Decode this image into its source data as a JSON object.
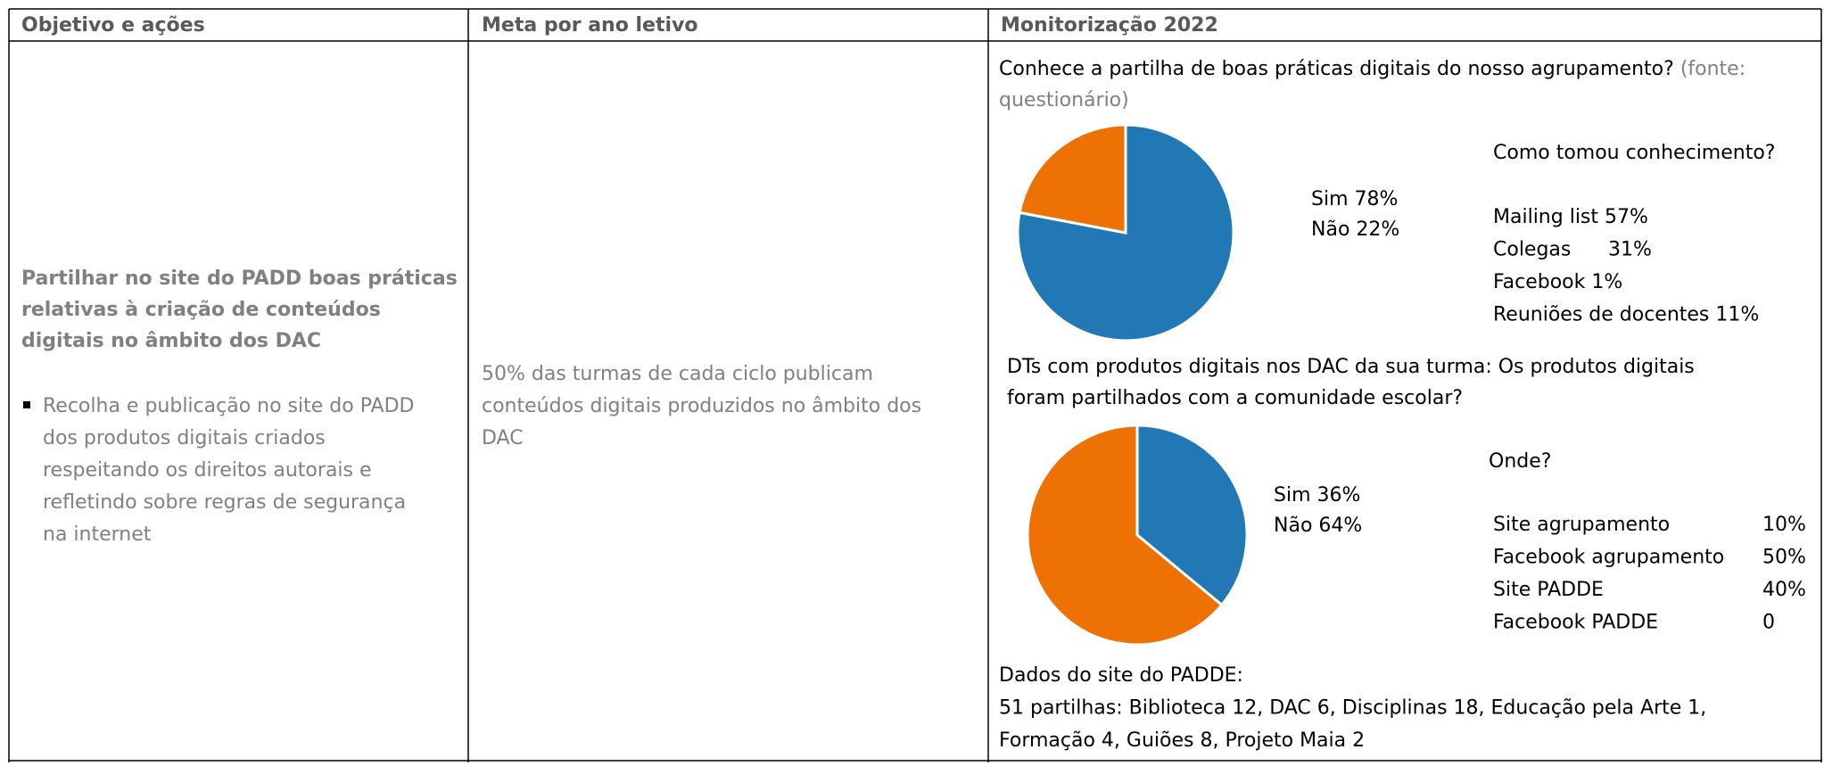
{
  "table": {
    "headers": [
      "Objetivo e ações",
      "Meta por ano letivo",
      "Monitorização 2022"
    ],
    "objective": {
      "title_lines": [
        "Partilhar no site do PADD boas práticas",
        "relativas à criação de conteúdos",
        "digitais no âmbito dos DAC"
      ],
      "bullet_lines": [
        "Recolha e publicação no site do PADD",
        "dos produtos digitais criados",
        "respeitando os direitos autorais e",
        "refletindo sobre regras de segurança",
        "na internet"
      ]
    },
    "goal_lines": [
      "50% das turmas de cada ciclo publicam",
      "conteúdos digitais produzidos no âmbito dos",
      "DAC"
    ],
    "monitoring": {
      "question1": {
        "text": "Conhece a partilha de boas práticas digitais do nosso agrupamento?",
        "source_lines": [
          "(fonte:",
          "questionário)"
        ]
      },
      "pie1": {
        "type": "pie",
        "categories": [
          "Sim",
          "Não"
        ],
        "values": [
          78,
          22
        ],
        "value_labels": [
          "78%",
          "22%"
        ],
        "colors": [
          "#2178b4",
          "#ee7203"
        ]
      },
      "breakdown1": {
        "title": "Como tomou conhecimento?",
        "items": [
          {
            "name": "Mailing list",
            "value": "57%"
          },
          {
            "name": "Colegas",
            "value": "31%"
          },
          {
            "name": "Facebook",
            "value": "1%"
          },
          {
            "name": "Reuniões de docentes",
            "value": "11%"
          }
        ]
      },
      "question2_lines": [
        "DTs com produtos digitais nos DAC da sua turma: Os produtos digitais",
        "foram partilhados com a comunidade escolar?"
      ],
      "pie2": {
        "type": "pie",
        "categories": [
          "Sim",
          "Não"
        ],
        "values": [
          36,
          64
        ],
        "value_labels": [
          "36%",
          "64%"
        ],
        "colors": [
          "#2178b4",
          "#ee7203"
        ]
      },
      "breakdown2": {
        "title": "Onde?",
        "items": [
          {
            "name": "Site agrupamento",
            "value": "10%"
          },
          {
            "name": "Facebook agrupamento",
            "value": "50%"
          },
          {
            "name": "Site PADDE",
            "value": "40%"
          },
          {
            "name": "Facebook PADDE",
            "value": "0"
          }
        ]
      },
      "site_data_lines": [
        "Dados do site do PADDE:",
        "51 partilhas: Biblioteca 12, DAC 6, Disciplinas 18, Educação pela Arte 1,",
        "Formação 4, Guiões 8, Projeto Maia 2"
      ]
    }
  }
}
